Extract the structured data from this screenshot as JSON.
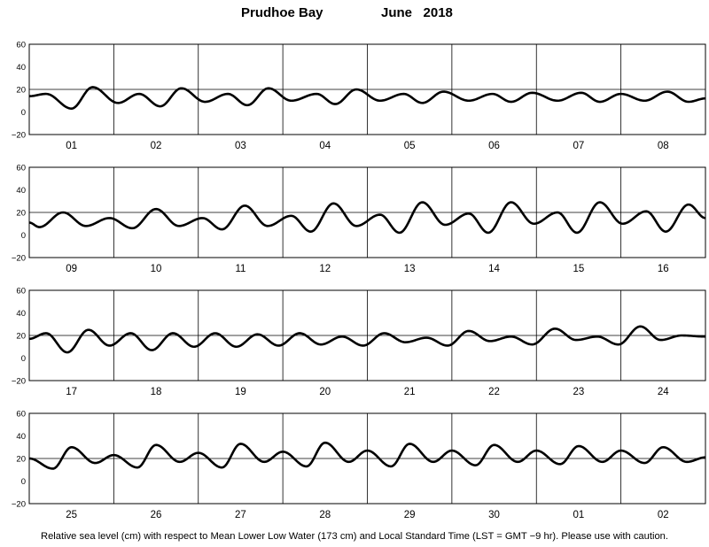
{
  "title": {
    "location": "Prudhoe Bay",
    "month_year": "June   2018"
  },
  "footer": "Relative sea level (cm) with respect to Mean Lower Low Water (173 cm) and Local Standard Time (LST = GMT −9 hr). Please use with caution.",
  "chart_data": {
    "type": "line",
    "ylim": [
      -20,
      60
    ],
    "yticks": [
      -20,
      0,
      20,
      40,
      60
    ],
    "ylabel": "",
    "xlabel": "",
    "grid": "horizontal at 20 cm; vertical day boundaries",
    "days_per_panel": 8,
    "start_day_offset": -0.5,
    "panels": [
      {
        "day_labels": [
          "01",
          "02",
          "03",
          "04",
          "05",
          "06",
          "07",
          "08"
        ],
        "extremes": [
          [
            -0.5,
            14
          ],
          [
            -0.3,
            16
          ],
          [
            0.0,
            3
          ],
          [
            0.25,
            22
          ],
          [
            0.55,
            8
          ],
          [
            0.8,
            16
          ],
          [
            1.05,
            5
          ],
          [
            1.3,
            21
          ],
          [
            1.58,
            9
          ],
          [
            1.85,
            16
          ],
          [
            2.08,
            6
          ],
          [
            2.33,
            21
          ],
          [
            2.6,
            10
          ],
          [
            2.9,
            16
          ],
          [
            3.12,
            7
          ],
          [
            3.37,
            20
          ],
          [
            3.65,
            10
          ],
          [
            3.93,
            16
          ],
          [
            4.15,
            8
          ],
          [
            4.4,
            18
          ],
          [
            4.7,
            10
          ],
          [
            4.98,
            16
          ],
          [
            5.2,
            9
          ],
          [
            5.45,
            17
          ],
          [
            5.75,
            10
          ],
          [
            6.03,
            17
          ],
          [
            6.25,
            9
          ],
          [
            6.5,
            16
          ],
          [
            6.78,
            10
          ],
          [
            7.05,
            18
          ],
          [
            7.3,
            9
          ],
          [
            7.5,
            12
          ]
        ]
      },
      {
        "day_labels": [
          "09",
          "10",
          "11",
          "12",
          "13",
          "14",
          "15",
          "16"
        ],
        "extremes": [
          [
            -0.5,
            11
          ],
          [
            -0.38,
            7
          ],
          [
            -0.1,
            20
          ],
          [
            0.17,
            8
          ],
          [
            0.45,
            15
          ],
          [
            0.72,
            6
          ],
          [
            1.0,
            23
          ],
          [
            1.27,
            8
          ],
          [
            1.55,
            15
          ],
          [
            1.78,
            5
          ],
          [
            2.05,
            26
          ],
          [
            2.32,
            8
          ],
          [
            2.6,
            17
          ],
          [
            2.83,
            3
          ],
          [
            3.1,
            28
          ],
          [
            3.37,
            8
          ],
          [
            3.65,
            18
          ],
          [
            3.88,
            2
          ],
          [
            4.15,
            29
          ],
          [
            4.42,
            9
          ],
          [
            4.7,
            19
          ],
          [
            4.93,
            2
          ],
          [
            5.2,
            29
          ],
          [
            5.47,
            10
          ],
          [
            5.75,
            20
          ],
          [
            5.98,
            2
          ],
          [
            6.25,
            29
          ],
          [
            6.52,
            10
          ],
          [
            6.8,
            21
          ],
          [
            7.03,
            3
          ],
          [
            7.3,
            27
          ],
          [
            7.5,
            15
          ]
        ]
      },
      {
        "day_labels": [
          "17",
          "18",
          "19",
          "20",
          "21",
          "22",
          "23",
          "24"
        ],
        "extremes": [
          [
            -0.5,
            17
          ],
          [
            -0.3,
            22
          ],
          [
            -0.05,
            5
          ],
          [
            0.2,
            25
          ],
          [
            0.45,
            11
          ],
          [
            0.7,
            22
          ],
          [
            0.95,
            7
          ],
          [
            1.2,
            22
          ],
          [
            1.45,
            10
          ],
          [
            1.7,
            22
          ],
          [
            1.95,
            10
          ],
          [
            2.2,
            21
          ],
          [
            2.45,
            11
          ],
          [
            2.7,
            22
          ],
          [
            2.95,
            12
          ],
          [
            3.2,
            19
          ],
          [
            3.45,
            11
          ],
          [
            3.7,
            22
          ],
          [
            3.95,
            14
          ],
          [
            4.2,
            18
          ],
          [
            4.45,
            11
          ],
          [
            4.7,
            24
          ],
          [
            4.95,
            15
          ],
          [
            5.2,
            19
          ],
          [
            5.45,
            12
          ],
          [
            5.72,
            26
          ],
          [
            5.97,
            16
          ],
          [
            6.22,
            19
          ],
          [
            6.47,
            12
          ],
          [
            6.73,
            28
          ],
          [
            6.97,
            16
          ],
          [
            7.22,
            20
          ],
          [
            7.5,
            19
          ]
        ]
      },
      {
        "day_labels": [
          "25",
          "26",
          "27",
          "28",
          "29",
          "30",
          "01",
          "02"
        ],
        "extremes": [
          [
            -0.5,
            20
          ],
          [
            -0.22,
            11
          ],
          [
            0.0,
            30
          ],
          [
            0.28,
            16
          ],
          [
            0.5,
            23
          ],
          [
            0.78,
            12
          ],
          [
            1.0,
            32
          ],
          [
            1.28,
            17
          ],
          [
            1.5,
            25
          ],
          [
            1.78,
            12
          ],
          [
            2.0,
            33
          ],
          [
            2.28,
            17
          ],
          [
            2.5,
            26
          ],
          [
            2.78,
            13
          ],
          [
            3.0,
            34
          ],
          [
            3.28,
            17
          ],
          [
            3.5,
            27
          ],
          [
            3.78,
            13
          ],
          [
            4.0,
            33
          ],
          [
            4.28,
            17
          ],
          [
            4.5,
            27
          ],
          [
            4.78,
            14
          ],
          [
            5.0,
            32
          ],
          [
            5.28,
            17
          ],
          [
            5.5,
            27
          ],
          [
            5.78,
            15
          ],
          [
            6.0,
            31
          ],
          [
            6.28,
            17
          ],
          [
            6.5,
            27
          ],
          [
            6.78,
            16
          ],
          [
            7.0,
            30
          ],
          [
            7.28,
            17
          ],
          [
            7.5,
            21
          ]
        ]
      }
    ]
  }
}
